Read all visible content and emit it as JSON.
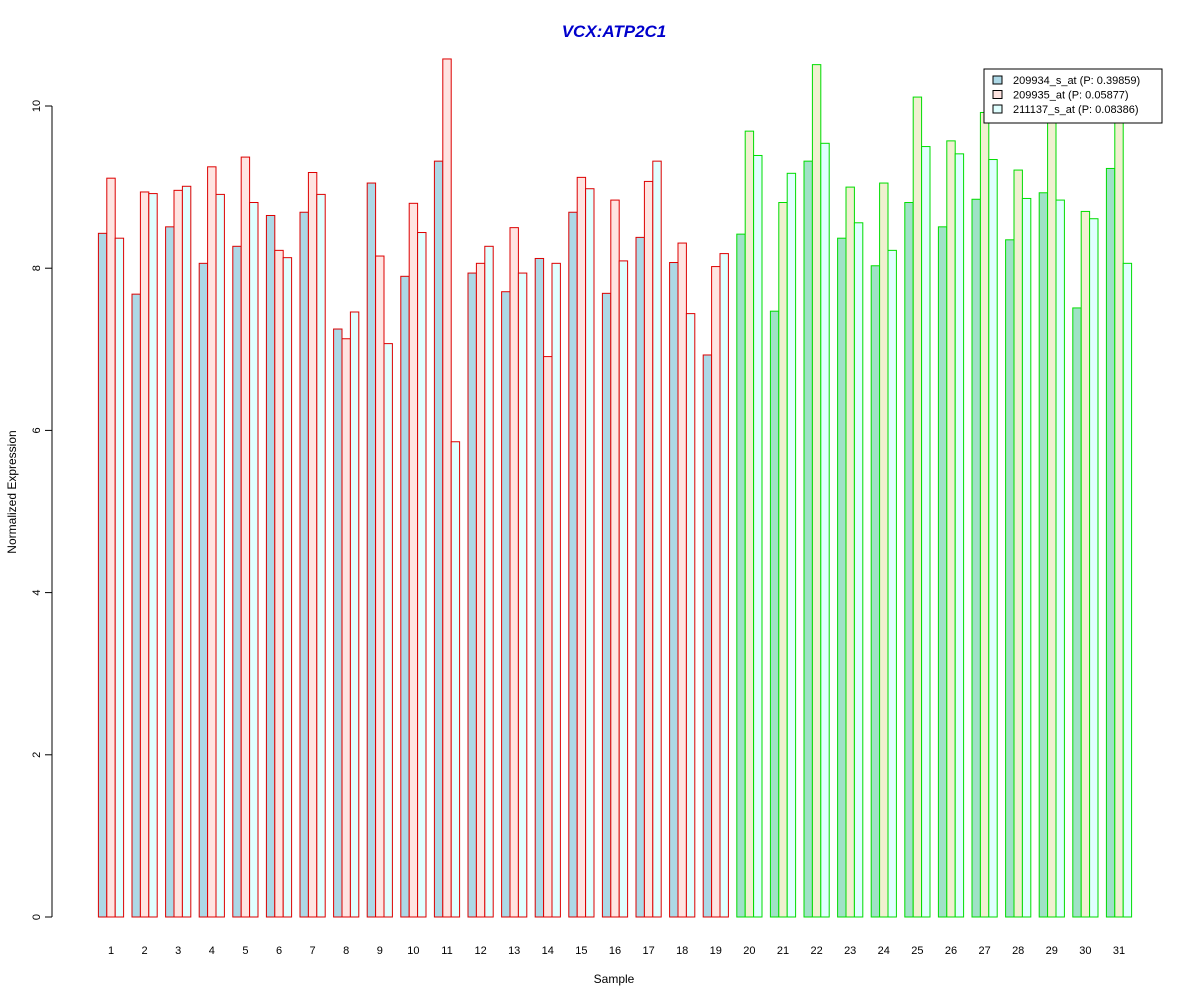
{
  "chart_data": {
    "type": "bar",
    "title": "VCX:ATP2C1",
    "xlabel": "Sample",
    "ylabel": "Normalized Expression",
    "ylim": [
      0,
      10.6
    ],
    "yticks": [
      "0",
      "2",
      "4",
      "6",
      "8",
      "10"
    ],
    "categories": [
      "1",
      "2",
      "3",
      "4",
      "5",
      "6",
      "7",
      "8",
      "9",
      "10",
      "11",
      "12",
      "13",
      "14",
      "15",
      "16",
      "17",
      "18",
      "19",
      "20",
      "21",
      "22",
      "23",
      "24",
      "25",
      "26",
      "27",
      "28",
      "29",
      "30",
      "31"
    ],
    "groups": [
      {
        "samples": "1-19",
        "border_color": "#dd0000"
      },
      {
        "samples": "20-31",
        "border_color": "#00dd00"
      }
    ],
    "series": [
      {
        "name": "209934_s_at (P: 0.39859)",
        "values": [
          8.43,
          7.68,
          8.51,
          8.06,
          8.27,
          8.65,
          8.69,
          7.25,
          9.05,
          7.9,
          9.32,
          7.94,
          7.71,
          8.12,
          8.69,
          7.69,
          8.38,
          8.07,
          6.93,
          8.42,
          7.47,
          9.32,
          8.37,
          8.03,
          8.81,
          8.51,
          8.85,
          8.35,
          8.93,
          7.51,
          9.23
        ]
      },
      {
        "name": "209935_at (P: 0.05877)",
        "values": [
          9.11,
          8.94,
          8.96,
          9.25,
          9.37,
          8.22,
          9.18,
          7.13,
          8.15,
          8.8,
          10.58,
          8.06,
          8.5,
          6.91,
          9.12,
          8.84,
          9.07,
          8.31,
          8.02,
          9.69,
          8.81,
          10.51,
          9.0,
          9.05,
          10.11,
          9.57,
          9.92,
          9.21,
          9.97,
          8.7,
          9.89
        ]
      },
      {
        "name": "211137_s_at (P: 0.08386)",
        "values": [
          8.37,
          8.92,
          9.01,
          8.91,
          8.81,
          8.13,
          8.91,
          7.46,
          7.07,
          8.44,
          5.86,
          8.27,
          7.94,
          8.06,
          8.98,
          8.09,
          9.32,
          7.44,
          8.18,
          9.39,
          9.17,
          9.54,
          8.56,
          8.22,
          9.5,
          9.41,
          9.34,
          8.86,
          8.84,
          8.61,
          8.06
        ]
      }
    ],
    "series_fill_colors": [
      "#add8e6",
      "#ffe4e1",
      "#e0ffff"
    ],
    "group2_fill_colors": [
      "#9fe2c6",
      "#f0f0d0",
      "#e0ffff"
    ],
    "title_color": "#0000cc",
    "legend_position": "top-right",
    "grid": false
  }
}
